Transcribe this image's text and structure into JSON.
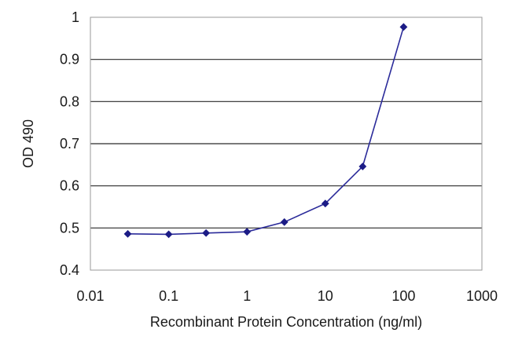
{
  "chart_data": {
    "type": "line",
    "title": "",
    "xlabel": "Recombinant Protein Concentration (ng/ml)",
    "ylabel": "OD 490",
    "x_scale": "log",
    "xlim": [
      0.01,
      1000
    ],
    "ylim": [
      0.4,
      1.0
    ],
    "x_ticks": [
      "0.01",
      "0.1",
      "1",
      "10",
      "100",
      "1000"
    ],
    "y_ticks": [
      "0.4",
      "0.5",
      "0.6",
      "0.7",
      "0.8",
      "0.9",
      "1"
    ],
    "grid": "horizontal",
    "legend": "none",
    "series": [
      {
        "x": [
          0.03,
          0.1,
          0.3,
          1,
          3,
          10,
          30,
          100
        ],
        "values": [
          0.486,
          0.485,
          0.488,
          0.491,
          0.514,
          0.558,
          0.646,
          0.977
        ],
        "color": "#2b2b9a"
      }
    ]
  }
}
